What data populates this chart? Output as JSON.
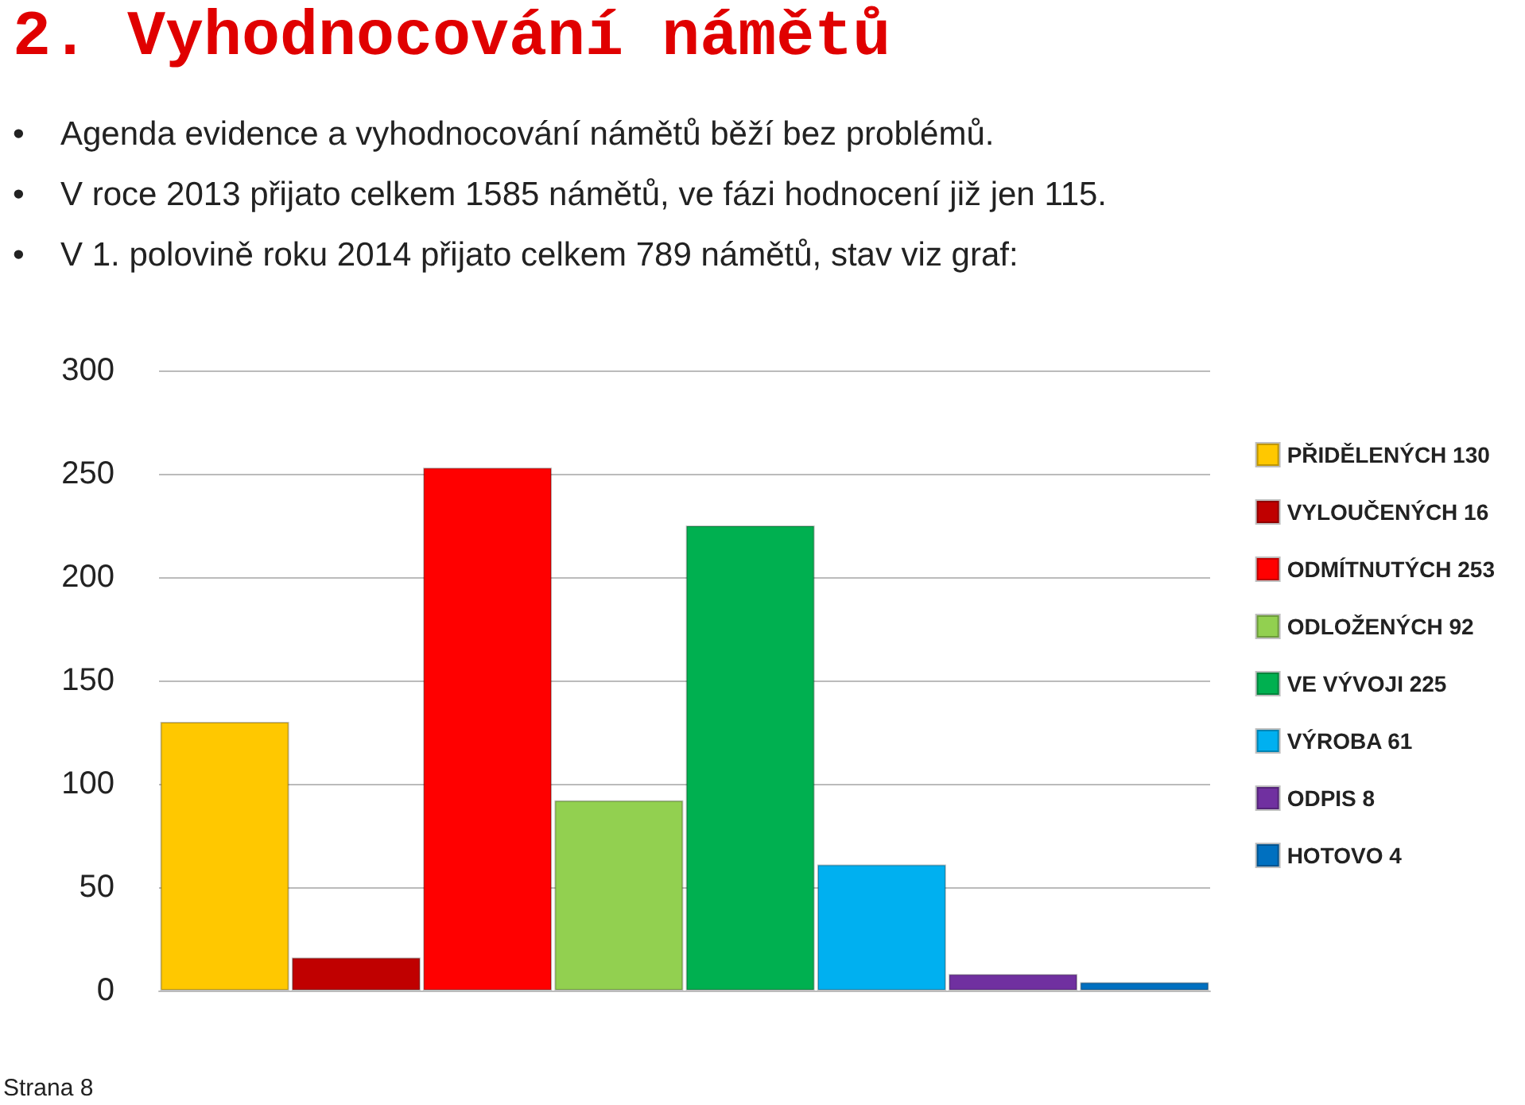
{
  "chart_data": {
    "type": "bar",
    "title": "2. Vyhodnocování námětů",
    "annotations": [
      "•",
      "Agenda evidence a vyhodnocování námětů běží bez problémů.",
      "•",
      "V roce 2013 přijato celkem 1585 námětů, ve fázi hodnocení již jen 115.",
      "•",
      "V 1. polovině roku 2014 přijato celkem 789 námětů, stav viz graf:",
      "Strana 8"
    ],
    "categories": [
      null,
      null,
      null,
      null,
      null,
      null,
      null,
      null
    ],
    "stacked": true,
    "series": [
      {
        "name": "PŘIDĚLENÝCH 130",
        "color": "#ffc800",
        "values": [
          130,
          null,
          null,
          null,
          null,
          null,
          null,
          null
        ]
      },
      {
        "name": "VYLOUČENÝCH 16",
        "color": "#c00000",
        "values": [
          null,
          16,
          null,
          null,
          null,
          null,
          null,
          null
        ]
      },
      {
        "name": "ODMÍTNUTÝCH 253",
        "color": "#ff0000",
        "values": [
          null,
          null,
          253,
          null,
          null,
          null,
          null,
          null
        ]
      },
      {
        "name": "ODLOŽENÝCH 92",
        "color": "#92d050",
        "values": [
          null,
          null,
          null,
          92,
          null,
          null,
          null,
          null
        ]
      },
      {
        "name": "VE VÝVOJI 225",
        "color": "#00b050",
        "values": [
          null,
          null,
          null,
          null,
          225,
          null,
          null,
          null
        ]
      },
      {
        "name": "VÝROBA 61",
        "color": "#00b0f0",
        "values": [
          null,
          null,
          null,
          null,
          null,
          61,
          null,
          null
        ]
      },
      {
        "name": "ODPIS 8",
        "color": "#7030a0",
        "values": [
          null,
          null,
          null,
          null,
          null,
          null,
          8,
          null
        ]
      },
      {
        "name": "HOTOVO 4",
        "color": "#0070c0",
        "values": [
          null,
          null,
          null,
          null,
          null,
          null,
          null,
          4
        ]
      }
    ],
    "ylim": [
      0,
      300
    ],
    "yticks": [
      0,
      50,
      100,
      150,
      200,
      250,
      300
    ],
    "grid": "y",
    "legend": "right"
  }
}
